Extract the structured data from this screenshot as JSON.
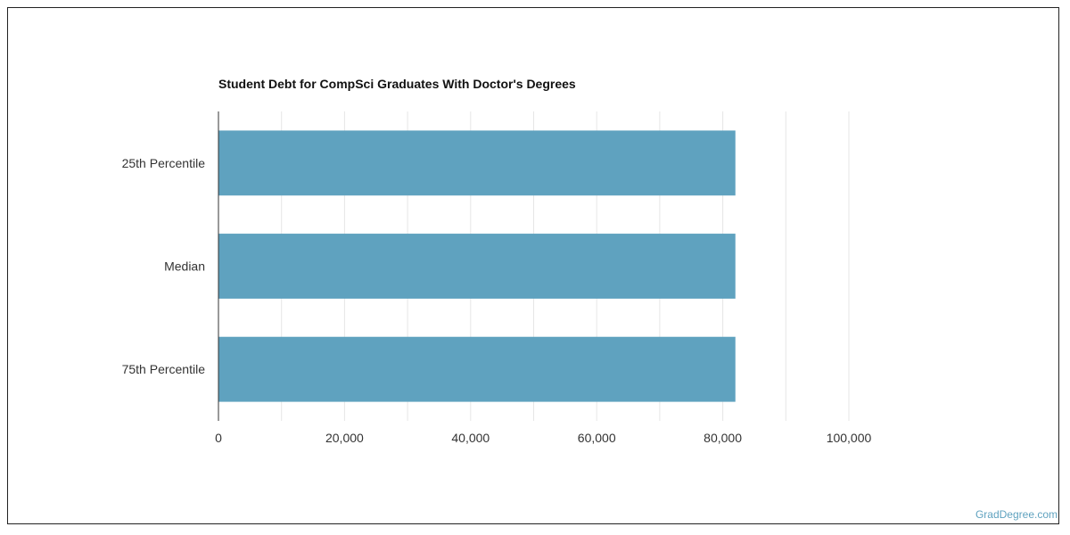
{
  "chart_data": {
    "type": "bar",
    "orientation": "horizontal",
    "title": "Student Debt for CompSci Graduates With Doctor's Degrees",
    "xlabel": "",
    "ylabel": "",
    "categories": [
      "25th Percentile",
      "Median",
      "75th Percentile"
    ],
    "values": [
      82000,
      82000,
      82000
    ],
    "xlim": [
      0,
      110000
    ],
    "x_ticks": [
      0,
      20000,
      40000,
      60000,
      80000,
      100000
    ],
    "x_tick_labels": [
      "0",
      "20,000",
      "40,000",
      "60,000",
      "80,000",
      "100,000"
    ],
    "grid": true,
    "legend": "none",
    "bar_color": "#5fa2bf"
  },
  "watermark": {
    "text": "GradDegree.com",
    "color": "#5fa2bf"
  }
}
